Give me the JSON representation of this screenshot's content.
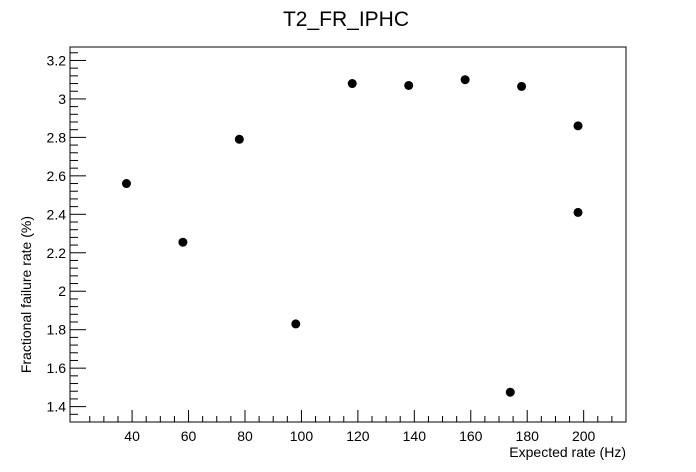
{
  "chart_data": {
    "type": "scatter",
    "title": "T2_FR_IPHC",
    "xlabel": "Expected rate (Hz)",
    "ylabel": "Fractional failure rate (%)",
    "xlim": [
      18,
      215
    ],
    "ylim": [
      1.32,
      3.27
    ],
    "x_ticks": [
      40,
      60,
      80,
      100,
      120,
      140,
      160,
      180,
      200
    ],
    "y_ticks": [
      1.4,
      1.6,
      1.8,
      2,
      2.2,
      2.4,
      2.6,
      2.8,
      3,
      3.2
    ],
    "x_tick_labels": [
      "40",
      "60",
      "80",
      "100",
      "120",
      "140",
      "160",
      "180",
      "200"
    ],
    "y_tick_labels": [
      "1.4",
      "1.6",
      "1.8",
      "2",
      "2.2",
      "2.4",
      "2.6",
      "2.8",
      "3",
      "3.2"
    ],
    "grid": false,
    "legend": "none",
    "marker_color": "#000000",
    "points": [
      {
        "x": 38,
        "y": 2.56
      },
      {
        "x": 58,
        "y": 2.255
      },
      {
        "x": 78,
        "y": 2.79
      },
      {
        "x": 98,
        "y": 1.83
      },
      {
        "x": 118,
        "y": 3.08
      },
      {
        "x": 138,
        "y": 3.07
      },
      {
        "x": 158,
        "y": 3.1
      },
      {
        "x": 174,
        "y": 1.475
      },
      {
        "x": 178,
        "y": 3.065
      },
      {
        "x": 198,
        "y": 2.86
      },
      {
        "x": 198,
        "y": 2.41
      }
    ]
  }
}
